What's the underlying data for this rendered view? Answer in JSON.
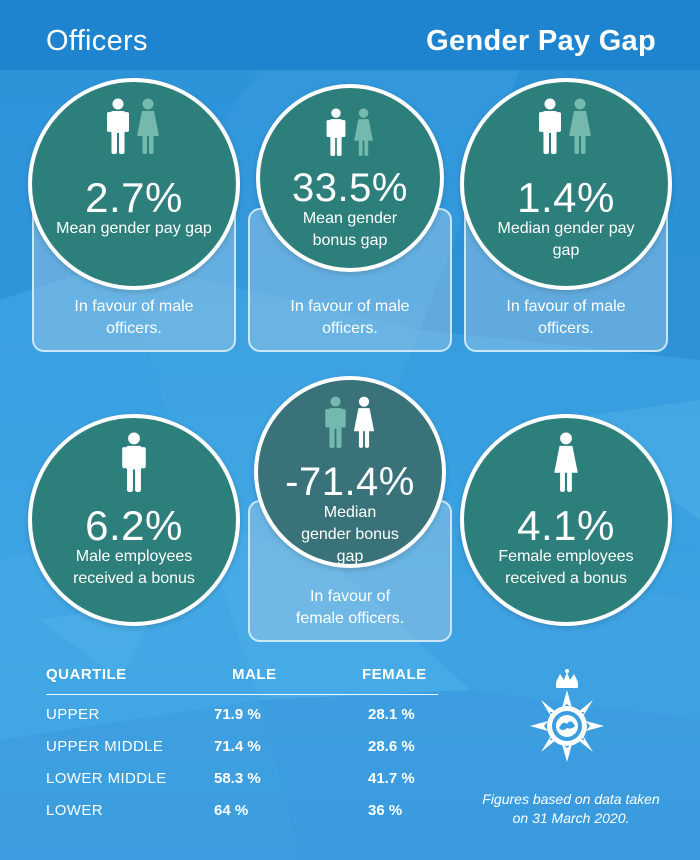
{
  "header": {
    "left_title": "Officers",
    "right_title": "Gender Pay Gap"
  },
  "colors": {
    "circle": "#2d7f7c",
    "circle_alt": "#3a7279",
    "female_icon": "#75b8ae",
    "background": "#3a9ee0"
  },
  "stats": [
    {
      "value": "2.7%",
      "label": "Mean gender pay gap",
      "note": "In favour of male officers.",
      "icons": [
        "male-icon",
        "female-icon"
      ]
    },
    {
      "value": "33.5%",
      "label": "Mean gender bonus gap",
      "note": "In favour of male officers.",
      "icons": [
        "male-icon",
        "female-icon"
      ]
    },
    {
      "value": "1.4%",
      "label": "Median gender pay gap",
      "note": "In favour of male officers.",
      "icons": [
        "male-icon",
        "female-icon"
      ]
    },
    {
      "value": "6.2%",
      "label": "Male employees received a bonus",
      "icons": [
        "male-icon"
      ]
    },
    {
      "value": "-71.4%",
      "label": "Median gender bonus gap",
      "note": "In favour of female officers.",
      "icons": [
        "male-icon",
        "female-icon"
      ]
    },
    {
      "value": "4.1%",
      "label": "Female employees received a bonus",
      "icons": [
        "female-icon"
      ]
    }
  ],
  "quartile_table": {
    "headers": [
      "QUARTILE",
      "MALE",
      "FEMALE"
    ],
    "rows": [
      [
        "UPPER",
        "71.9 %",
        "28.1 %"
      ],
      [
        "UPPER MIDDLE",
        "71.4 %",
        "28.6 %"
      ],
      [
        "LOWER MIDDLE",
        "58.3 %",
        "41.7 %"
      ],
      [
        "LOWER",
        "64 %",
        "36 %"
      ]
    ]
  },
  "badge": {
    "icon": "police-crest-icon"
  },
  "footnote": "Figures based on data taken on 31 March 2020."
}
